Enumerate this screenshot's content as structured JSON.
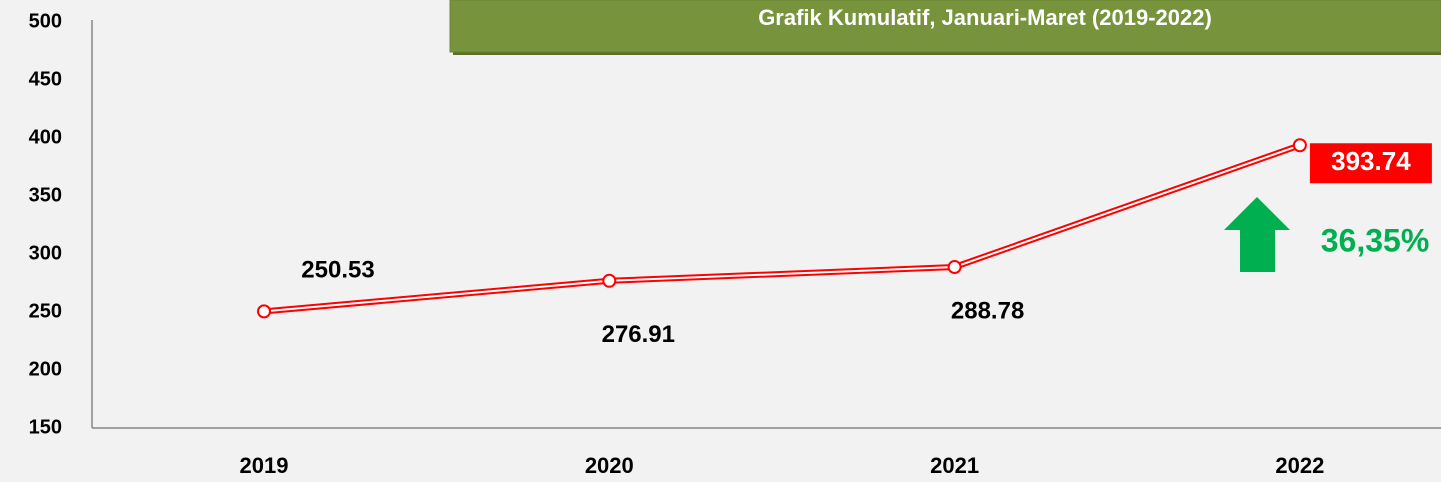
{
  "chart_data": {
    "type": "line",
    "title": "Grafik Kumulatif,  Januari-Maret (2019-2022)",
    "categories": [
      "2019",
      "2020",
      "2021",
      "2022"
    ],
    "values": [
      250.53,
      276.91,
      288.78,
      393.74
    ],
    "color": "#ff0000",
    "ylim": [
      150,
      500
    ],
    "yticks": [
      150,
      200,
      250,
      300,
      350,
      400,
      450,
      500
    ],
    "annotation": "36,35%"
  }
}
